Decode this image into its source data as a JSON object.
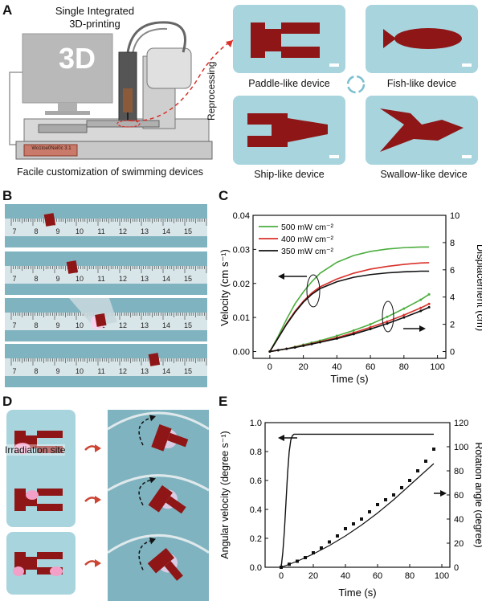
{
  "panels": {
    "A": "A",
    "B": "B",
    "C": "C",
    "D": "D",
    "E": "E"
  },
  "panel_a": {
    "title_line1": "Single Integrated",
    "title_line2": "3D-printing",
    "monitor_text": "3D",
    "printer_plate": "Wo1toe0Nel0c 3.1",
    "caption": "Facile customization of swimming devices",
    "reprocessing": "Reprocessing",
    "devices": [
      "Paddle-like device",
      "Fish-like device",
      "Ship-like device",
      "Swallow-like device"
    ]
  },
  "panel_b": {
    "ruler_ticks": [
      "7",
      "8",
      "9",
      "10",
      "11",
      "12",
      "13",
      "14",
      "15"
    ]
  },
  "panel_d": {
    "irradiation_label": "Irradiation site"
  },
  "colors": {
    "device_red": "#8e1616",
    "tile_bg": "#a8d4de",
    "green": "#4cae3f",
    "red": "#d9312b",
    "black": "#111111"
  },
  "chart_data": [
    {
      "type": "line",
      "panel": "C",
      "xlabel": "Time (s)",
      "ylabel": "Velocity (cm s⁻¹)",
      "y2label": "Displacement (cm)",
      "xlim": [
        -10,
        105
      ],
      "ylim": [
        -0.002,
        0.04
      ],
      "y2lim": [
        -0.5,
        10
      ],
      "xticks": [
        "0",
        "20",
        "40",
        "60",
        "80",
        "100"
      ],
      "yticks": [
        "0.00",
        "0.01",
        "0.02",
        "0.03",
        "0.04"
      ],
      "y2ticks": [
        "0",
        "2",
        "4",
        "6",
        "8",
        "10"
      ],
      "x": [
        0,
        5,
        10,
        15,
        20,
        25,
        30,
        40,
        50,
        60,
        70,
        80,
        90,
        95
      ],
      "series": [
        {
          "name": "500 mW cm⁻²",
          "axis": "left",
          "color": "#4cae3f",
          "values": [
            0,
            0.0045,
            0.0095,
            0.014,
            0.0175,
            0.0205,
            0.023,
            0.0262,
            0.0282,
            0.0294,
            0.0301,
            0.0305,
            0.0307,
            0.0307
          ]
        },
        {
          "name": "400 mW cm⁻²",
          "axis": "left",
          "color": "#d9312b",
          "values": [
            0,
            0.004,
            0.0082,
            0.0118,
            0.0148,
            0.0172,
            0.019,
            0.0213,
            0.023,
            0.0242,
            0.025,
            0.0256,
            0.026,
            0.0261
          ]
        },
        {
          "name": "350 mW cm⁻²",
          "axis": "left",
          "color": "#111111",
          "values": [
            0,
            0.004,
            0.008,
            0.0115,
            0.0145,
            0.0168,
            0.0185,
            0.0205,
            0.0218,
            0.0226,
            0.0231,
            0.0234,
            0.0236,
            0.0236
          ]
        },
        {
          "name": "500 mW cm⁻²",
          "axis": "right",
          "color": "#4cae3f",
          "values": [
            0,
            0.1,
            0.2,
            0.35,
            0.5,
            0.65,
            0.8,
            1.15,
            1.55,
            2.0,
            2.55,
            3.15,
            3.8,
            4.2
          ]
        },
        {
          "name": "400 mW cm⁻²",
          "axis": "right",
          "color": "#d9312b",
          "values": [
            0,
            0.1,
            0.2,
            0.32,
            0.45,
            0.58,
            0.72,
            1.02,
            1.38,
            1.78,
            2.2,
            2.68,
            3.2,
            3.5
          ]
        },
        {
          "name": "350 mW cm⁻²",
          "axis": "right",
          "color": "#111111",
          "values": [
            0,
            0.1,
            0.2,
            0.3,
            0.42,
            0.55,
            0.68,
            0.95,
            1.28,
            1.65,
            2.05,
            2.5,
            2.98,
            3.25
          ]
        }
      ]
    },
    {
      "type": "line",
      "panel": "E",
      "xlabel": "Time (s)",
      "ylabel": "Angular velocity (degree s⁻¹)",
      "y2label": "Rotation angle (degree)",
      "xlim": [
        -10,
        105
      ],
      "ylim": [
        0,
        1.0
      ],
      "y2lim": [
        0,
        120
      ],
      "xticks": [
        "0",
        "20",
        "40",
        "60",
        "80",
        "100"
      ],
      "yticks": [
        "0.0",
        "0.2",
        "0.4",
        "0.6",
        "0.8",
        "1.0"
      ],
      "y2ticks": [
        "0",
        "20",
        "40",
        "60",
        "80",
        "100",
        "120"
      ],
      "angular_velocity": {
        "x": [
          0,
          1,
          2,
          3,
          4,
          5,
          6,
          7,
          8,
          10,
          15,
          20,
          40,
          60,
          80,
          95
        ],
        "values": [
          0,
          0.1,
          0.25,
          0.45,
          0.65,
          0.8,
          0.88,
          0.91,
          0.92,
          0.92,
          0.92,
          0.92,
          0.92,
          0.92,
          0.92,
          0.92
        ]
      },
      "rotation_angle_points": {
        "x": [
          0,
          5,
          10,
          15,
          20,
          25,
          30,
          35,
          40,
          45,
          50,
          55,
          60,
          65,
          70,
          75,
          80,
          85,
          90,
          95
        ],
        "values": [
          0,
          2.5,
          5,
          8,
          12,
          16,
          21,
          26,
          32,
          36,
          40,
          46,
          52,
          56,
          60,
          66,
          72,
          80,
          88,
          98
        ]
      },
      "rotation_angle_fit": {
        "x": [
          0,
          10,
          20,
          30,
          40,
          50,
          60,
          70,
          80,
          90,
          95
        ],
        "values": [
          0,
          5,
          11,
          18,
          26,
          35,
          45,
          56,
          68,
          80,
          86
        ]
      }
    }
  ]
}
